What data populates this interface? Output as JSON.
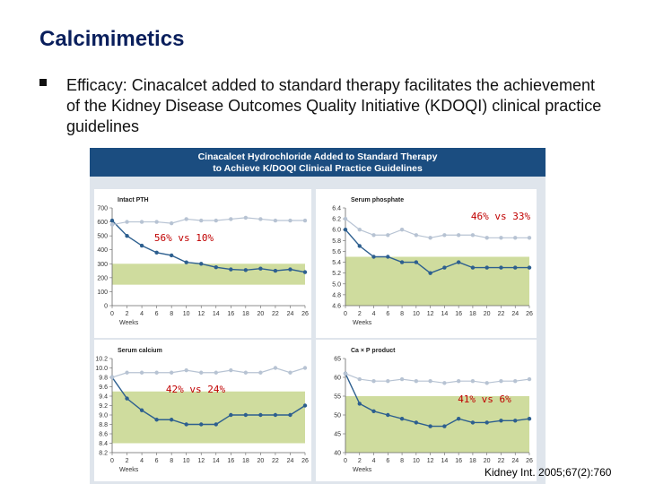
{
  "slide_title": "Calcimimetics",
  "bullet_text": "Efficacy: Cinacalcet added to standard therapy facilitates the achievement of the Kidney Disease Outcomes Quality Initiative (KDOQI) clinical practice guidelines",
  "figure_title_line1": "Cinacalcet Hydrochloride Added to Standard Therapy",
  "figure_title_line2": "to Achieve K/DOQI Clinical Practice Guidelines",
  "citation": "Kidney Int. 2005;67(2):760",
  "colors": {
    "title": "#0a1f5c",
    "header_bg": "#1b4d80",
    "panel_bg": "#dfe5ec",
    "target_band": "#cfdc9e",
    "cinacalcet_line": "#2d5f8f",
    "control_line": "#b7c3d3",
    "annotation": "#c00000"
  },
  "chart_data": [
    {
      "type": "line",
      "title": "Intact PTH",
      "xlabel": "Weeks",
      "ylabel": "",
      "x": [
        0,
        2,
        4,
        6,
        8,
        10,
        12,
        14,
        16,
        18,
        20,
        22,
        24,
        26
      ],
      "xticks": [
        "0",
        "2",
        "4",
        "6",
        "8",
        "10",
        "12",
        "14",
        "16",
        "18",
        "20",
        "22",
        "24",
        "26"
      ],
      "ylim": [
        0,
        700
      ],
      "yticks": [
        "0",
        "100",
        "200",
        "300",
        "400",
        "500",
        "600",
        "700"
      ],
      "target_range": [
        150,
        300
      ],
      "annotation": "56% vs 10%",
      "series": [
        {
          "role": "cinacalcet",
          "values": [
            610,
            500,
            430,
            380,
            360,
            310,
            300,
            275,
            260,
            255,
            265,
            250,
            260,
            240
          ]
        },
        {
          "role": "control",
          "values": [
            580,
            600,
            600,
            600,
            590,
            620,
            610,
            610,
            620,
            630,
            620,
            610,
            610,
            610
          ]
        }
      ]
    },
    {
      "type": "line",
      "title": "Serum phosphate",
      "xlabel": "Weeks",
      "ylabel": "",
      "x": [
        0,
        2,
        4,
        6,
        8,
        10,
        12,
        14,
        16,
        18,
        20,
        22,
        24,
        26
      ],
      "xticks": [
        "0",
        "2",
        "4",
        "6",
        "8",
        "10",
        "12",
        "14",
        "16",
        "18",
        "20",
        "22",
        "24",
        "26"
      ],
      "ylim": [
        4.6,
        6.4
      ],
      "yticks": [
        "4.6",
        "4.8",
        "5.0",
        "5.2",
        "5.4",
        "5.6",
        "5.8",
        "6.0",
        "6.2",
        "6.4"
      ],
      "target_range": [
        4.6,
        5.5
      ],
      "annotation": "46% vs 33%",
      "series": [
        {
          "role": "cinacalcet",
          "values": [
            6.0,
            5.7,
            5.5,
            5.5,
            5.4,
            5.4,
            5.2,
            5.3,
            5.4,
            5.3,
            5.3,
            5.3,
            5.3,
            5.3
          ]
        },
        {
          "role": "control",
          "values": [
            6.2,
            6.0,
            5.9,
            5.9,
            6.0,
            5.9,
            5.85,
            5.9,
            5.9,
            5.9,
            5.85,
            5.85,
            5.85,
            5.85
          ]
        }
      ]
    },
    {
      "type": "line",
      "title": "Serum calcium",
      "xlabel": "Weeks",
      "ylabel": "",
      "x": [
        0,
        2,
        4,
        6,
        8,
        10,
        12,
        14,
        16,
        18,
        20,
        22,
        24,
        26
      ],
      "xticks": [
        "0",
        "2",
        "4",
        "6",
        "8",
        "10",
        "12",
        "14",
        "16",
        "18",
        "20",
        "22",
        "24",
        "26"
      ],
      "ylim": [
        8.2,
        10.2
      ],
      "yticks": [
        "8.2",
        "8.4",
        "8.6",
        "8.8",
        "9.0",
        "9.2",
        "9.4",
        "9.6",
        "9.8",
        "10.0",
        "10.2"
      ],
      "target_range": [
        8.4,
        9.5
      ],
      "annotation": "42% vs 24%",
      "series": [
        {
          "role": "cinacalcet",
          "values": [
            9.8,
            9.35,
            9.1,
            8.9,
            8.9,
            8.8,
            8.8,
            8.8,
            9.0,
            9.0,
            9.0,
            9.0,
            9.0,
            9.2
          ]
        },
        {
          "role": "control",
          "values": [
            9.8,
            9.9,
            9.9,
            9.9,
            9.9,
            9.95,
            9.9,
            9.9,
            9.95,
            9.9,
            9.9,
            10.0,
            9.9,
            10.0
          ]
        }
      ]
    },
    {
      "type": "line",
      "title": "Ca × P product",
      "xlabel": "Weeks",
      "ylabel": "",
      "x": [
        0,
        2,
        4,
        6,
        8,
        10,
        12,
        14,
        16,
        18,
        20,
        22,
        24,
        26
      ],
      "xticks": [
        "0",
        "2",
        "4",
        "6",
        "8",
        "10",
        "12",
        "14",
        "16",
        "18",
        "20",
        "22",
        "24",
        "26"
      ],
      "ylim": [
        40,
        65
      ],
      "yticks": [
        "40",
        "45",
        "50",
        "55",
        "60",
        "65"
      ],
      "target_range": [
        40,
        55
      ],
      "annotation": "41% vs 6%",
      "series": [
        {
          "role": "cinacalcet",
          "values": [
            61,
            53,
            51,
            50,
            49,
            48,
            47,
            47,
            49,
            48,
            48,
            48.5,
            48.5,
            49
          ]
        },
        {
          "role": "control",
          "values": [
            61,
            59.5,
            59,
            59,
            59.5,
            59,
            59,
            58.5,
            59,
            59,
            58.5,
            59,
            59,
            59.5
          ]
        }
      ]
    }
  ]
}
